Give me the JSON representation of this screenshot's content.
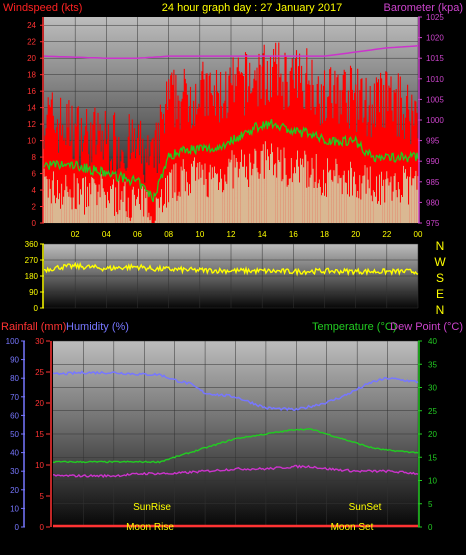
{
  "header": {
    "left_label": "Windspeed (kts)",
    "title": "24 hour graph day : 27 January 2017",
    "right_label": "Barometer (kpa)"
  },
  "lower_header": {
    "rainfall_label": "Rainfall (mm)",
    "humidity_label": "Humidity (%)",
    "temperature_label": "Temperature (°C)",
    "dewpoint_label": "Dew Point (°C)"
  },
  "annotations": {
    "sunrise": "SunRise",
    "sunset": "SunSet",
    "moonrise": "Moon Rise",
    "moonset": "Moon Set"
  },
  "compass": [
    "N",
    "W",
    "S",
    "E",
    "N"
  ],
  "colors": {
    "windspeed": "#ff0000",
    "wind_avg": "#22cc22",
    "wind_low": "#ccffcc",
    "barometer": "#cc33cc",
    "direction": "#ffff00",
    "humidity": "#7777ff",
    "temperature": "#22cc22",
    "dewpoint": "#cc33cc",
    "rainfall": "#ff3333",
    "title": "#ffff00"
  },
  "chart_data": [
    {
      "type": "line",
      "name": "wind-barometer",
      "x_ticks": [
        "02",
        "04",
        "06",
        "08",
        "10",
        "12",
        "14",
        "16",
        "18",
        "20",
        "22",
        "00"
      ],
      "left_axis": {
        "label": "Windspeed (kts)",
        "ylim": [
          0,
          25
        ],
        "ticks": [
          0,
          2,
          4,
          6,
          8,
          10,
          12,
          14,
          16,
          18,
          20,
          22,
          24
        ]
      },
      "right_axis": {
        "label": "Barometer (kpa)",
        "ylim": [
          975,
          1025
        ],
        "ticks": [
          975,
          980,
          985,
          990,
          995,
          1000,
          1005,
          1010,
          1015,
          1020,
          1025
        ]
      },
      "series": [
        {
          "name": "Windspeed",
          "x": [
            0,
            2,
            4,
            6,
            7,
            8,
            9,
            10,
            11,
            12,
            13,
            14,
            15,
            16,
            17,
            18,
            19,
            20,
            21,
            22,
            23,
            24
          ],
          "values": [
            13,
            11,
            10,
            9,
            7,
            15,
            15,
            16,
            15,
            16,
            17,
            18,
            18,
            17,
            18,
            15,
            16,
            15,
            14,
            15,
            14,
            13
          ]
        },
        {
          "name": "Wind average",
          "x": [
            0,
            2,
            4,
            6,
            7,
            8,
            9,
            10,
            11,
            12,
            13,
            14,
            15,
            16,
            17,
            18,
            19,
            20,
            21,
            22,
            23,
            24
          ],
          "values": [
            7,
            7,
            6,
            5,
            3,
            8,
            9,
            9,
            9,
            10,
            11,
            12,
            12,
            11,
            11,
            10,
            10,
            10,
            8,
            8,
            8,
            8
          ]
        },
        {
          "name": "Wind low",
          "x": [
            0,
            2,
            4,
            6,
            7,
            8,
            9,
            10,
            11,
            12,
            13,
            14,
            15,
            16,
            17,
            18,
            19,
            20,
            21,
            22,
            23,
            24
          ],
          "values": [
            4,
            3,
            3,
            2,
            1,
            4,
            5,
            5,
            5,
            6,
            6,
            7,
            7,
            6,
            6,
            5,
            5,
            5,
            4,
            4,
            4,
            4
          ]
        },
        {
          "name": "Barometer",
          "x": [
            0,
            4,
            6,
            8,
            12,
            16,
            18,
            20,
            22,
            24
          ],
          "values": [
            1015.5,
            1015,
            1015,
            1015.5,
            1015.5,
            1015.5,
            1015.5,
            1016.5,
            1017.5,
            1018
          ]
        }
      ]
    },
    {
      "type": "line",
      "name": "wind-direction",
      "ylim": [
        0,
        360
      ],
      "ticks": [
        0,
        90,
        180,
        270,
        360
      ],
      "series": [
        {
          "name": "Direction",
          "x": [
            0,
            1,
            2,
            3,
            4,
            5,
            6,
            7,
            8,
            10,
            12,
            14,
            16,
            18,
            20,
            22,
            24
          ],
          "values": [
            215,
            230,
            235,
            230,
            222,
            228,
            232,
            220,
            218,
            212,
            210,
            208,
            205,
            208,
            206,
            205,
            205
          ]
        }
      ]
    },
    {
      "type": "line",
      "name": "rain-humidity-temperature",
      "left_axis_humidity": {
        "label": "Humidity (%)",
        "ylim": [
          0,
          100
        ],
        "ticks": [
          0,
          10,
          20,
          30,
          40,
          50,
          60,
          70,
          80,
          90,
          100
        ]
      },
      "left_axis_rainfall": {
        "label": "Rainfall (mm)",
        "ylim": [
          0,
          30
        ],
        "ticks": [
          0,
          5,
          10,
          15,
          20,
          25,
          30
        ]
      },
      "right_axis": {
        "label": "Temperature (°C)",
        "ylim": [
          0,
          40
        ],
        "ticks": [
          0,
          5,
          10,
          15,
          20,
          25,
          30,
          35,
          40
        ]
      },
      "series": [
        {
          "name": "Humidity",
          "x": [
            0,
            2,
            4,
            6,
            7,
            8,
            9,
            10,
            12,
            13,
            14,
            16,
            17,
            18,
            19,
            20,
            21,
            22,
            23,
            24
          ],
          "values": [
            82,
            83,
            83,
            82,
            82,
            79,
            77,
            72,
            70,
            67,
            64,
            63,
            65,
            67,
            70,
            74,
            78,
            80,
            79,
            78
          ]
        },
        {
          "name": "Temperature",
          "x": [
            0,
            2,
            4,
            6,
            7,
            8,
            9,
            10,
            12,
            14,
            16,
            17,
            18,
            19,
            20,
            21,
            22,
            24
          ],
          "values": [
            14,
            14,
            14,
            14,
            14,
            15,
            16,
            17,
            19,
            20,
            21,
            21,
            20,
            19,
            18,
            17,
            16.5,
            16
          ]
        },
        {
          "name": "Dew Point",
          "x": [
            0,
            2,
            4,
            6,
            8,
            10,
            12,
            14,
            16,
            17,
            18,
            20,
            22,
            24
          ],
          "values": [
            11,
            11,
            11,
            11.5,
            11.5,
            12,
            12.5,
            12.5,
            13,
            13,
            12.5,
            12,
            12,
            11.5
          ]
        },
        {
          "name": "Rainfall",
          "x": [
            0,
            24
          ],
          "values": [
            0,
            0
          ]
        }
      ]
    }
  ]
}
